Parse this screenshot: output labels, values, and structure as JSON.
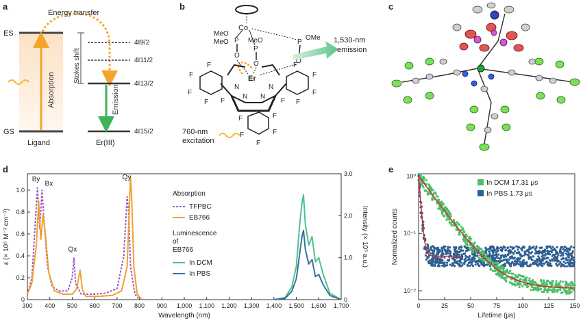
{
  "panels": {
    "a": {
      "label": "a",
      "energy_transfer": "Energy transfer",
      "es": "ES",
      "gs": "GS",
      "stokes_shift": "Stokes shift",
      "absorption": "Absorption",
      "emission": "Emission",
      "ligand": "Ligand",
      "erIII": "Er(III)",
      "levels": [
        "4I9/2",
        "4I11/2",
        "4I13/2",
        "4I15/2"
      ],
      "colors": {
        "absorption": "#f4a52a",
        "emission": "#3fb35a"
      }
    },
    "b": {
      "label": "b",
      "emission_text_1": "1,530-nm",
      "emission_text_2": "emission",
      "excitation_text_1": "760-nm",
      "excitation_text_2": "excitation",
      "atoms": {
        "co": "Co",
        "er": "Er",
        "p": "P",
        "o": "O",
        "n": "N",
        "f": "F",
        "meo": "MeO",
        "ome": "OMe"
      }
    },
    "c": {
      "label": "c"
    },
    "d": {
      "label": "d",
      "y_left_label": "ε (× 10⁵ M⁻¹ cm⁻¹)",
      "y_right_label": "Intensity (× 10⁵ a.u.)",
      "x_label": "Wavelength (nm)",
      "x_ticks": [
        "300",
        "400",
        "500",
        "600",
        "700",
        "800",
        "900",
        "1,000",
        "1,100",
        "1,200",
        "1,300",
        "1,400",
        "1,500",
        "1,600",
        "1,700"
      ],
      "y_left_ticks": [
        "0",
        "0.2",
        "0.4",
        "0.6",
        "0.8",
        "1.0"
      ],
      "y_right_ticks": [
        "0",
        "1.0",
        "2.0",
        "3.0"
      ],
      "peak_labels": {
        "by": "By",
        "bx": "Bx",
        "qx": "Qx",
        "qy": "Qy"
      },
      "legend": {
        "absorption_title": "Absorption",
        "tfpbc": "TFPBC",
        "eb766": "EB766",
        "lum_title_1": "Luminescence",
        "lum_title_2": "of",
        "lum_title_3": "EB766",
        "dcm": "In DCM",
        "pbs": "In PBS"
      },
      "colors": {
        "tfpbc": "#9b59c4",
        "eb766": "#f0a030",
        "dcm": "#4cc08a",
        "pbs": "#3b6f9e"
      }
    },
    "e": {
      "label": "e",
      "y_label": "Normalized counts",
      "x_label": "Lifetime (μs)",
      "x_ticks": [
        "0",
        "25",
        "50",
        "75",
        "100",
        "125",
        "150"
      ],
      "y_ticks": [
        "10⁰",
        "10⁻¹",
        "10⁻²"
      ],
      "legend": {
        "dcm": "In DCM 17.31 μs",
        "pbs": "In PBS 1.73 μs"
      },
      "colors": {
        "dcm": "#4cc06a",
        "pbs": "#2e5f92",
        "fit": "#d03030"
      }
    }
  },
  "chart_data": [
    {
      "type": "line",
      "title": "",
      "xlabel": "Wavelength (nm)",
      "ylabel": "ε (× 10⁵ M⁻¹ cm⁻¹)",
      "ylabel_right": "Intensity (× 10⁵ a.u.)",
      "xlim": [
        300,
        1700
      ],
      "ylim": [
        0,
        1.15
      ],
      "ylim_right": [
        0,
        3.0
      ],
      "series": [
        {
          "name": "TFPBC",
          "x": [
            300,
            320,
            335,
            345,
            355,
            365,
            375,
            390,
            410,
            440,
            480,
            500,
            508,
            515,
            540,
            600,
            650,
            700,
            730,
            745,
            752,
            760,
            780,
            800
          ],
          "y": [
            0.05,
            0.2,
            0.7,
            1.02,
            0.65,
            1.0,
            0.7,
            0.3,
            0.12,
            0.08,
            0.08,
            0.2,
            0.38,
            0.15,
            0.05,
            0.05,
            0.06,
            0.1,
            0.4,
            0.94,
            0.8,
            0.3,
            0.05,
            0.0
          ]
        },
        {
          "name": "EB766",
          "x": [
            300,
            320,
            340,
            350,
            360,
            370,
            380,
            395,
            420,
            460,
            500,
            520,
            535,
            545,
            560,
            620,
            680,
            720,
            745,
            760,
            765,
            775,
            790,
            810
          ],
          "y": [
            0.05,
            0.15,
            0.5,
            0.9,
            0.55,
            0.78,
            0.6,
            0.25,
            0.08,
            0.05,
            0.05,
            0.1,
            0.27,
            0.1,
            0.03,
            0.03,
            0.04,
            0.08,
            0.3,
            1.12,
            0.95,
            0.3,
            0.05,
            0.0
          ]
        },
        {
          "name": "In DCM",
          "axis": "right",
          "x": [
            1400,
            1450,
            1480,
            1500,
            1515,
            1525,
            1532,
            1540,
            1555,
            1570,
            1585,
            1600,
            1620,
            1650,
            1700
          ],
          "y": [
            0.0,
            0.05,
            0.3,
            0.8,
            1.8,
            2.3,
            2.5,
            1.8,
            1.3,
            1.5,
            0.9,
            1.0,
            0.6,
            0.15,
            0.0
          ]
        },
        {
          "name": "In PBS",
          "axis": "right",
          "x": [
            1400,
            1450,
            1480,
            1500,
            1515,
            1525,
            1532,
            1540,
            1555,
            1570,
            1585,
            1600,
            1620,
            1650,
            1700
          ],
          "y": [
            0.0,
            0.03,
            0.2,
            0.5,
            1.1,
            1.5,
            1.65,
            1.2,
            0.85,
            0.95,
            0.55,
            0.6,
            0.35,
            0.1,
            0.0
          ]
        }
      ]
    },
    {
      "type": "scatter",
      "title": "",
      "xlabel": "Lifetime (μs)",
      "ylabel": "Normalized counts",
      "xlim": [
        0,
        150
      ],
      "ylim": [
        0.007,
        1.1
      ],
      "yscale": "log",
      "series": [
        {
          "name": "In DCM 17.31 μs",
          "tau": 17.31,
          "baseline": 0.011
        },
        {
          "name": "In PBS 1.73 μs",
          "tau": 1.73,
          "baseline": 0.04
        }
      ]
    }
  ]
}
